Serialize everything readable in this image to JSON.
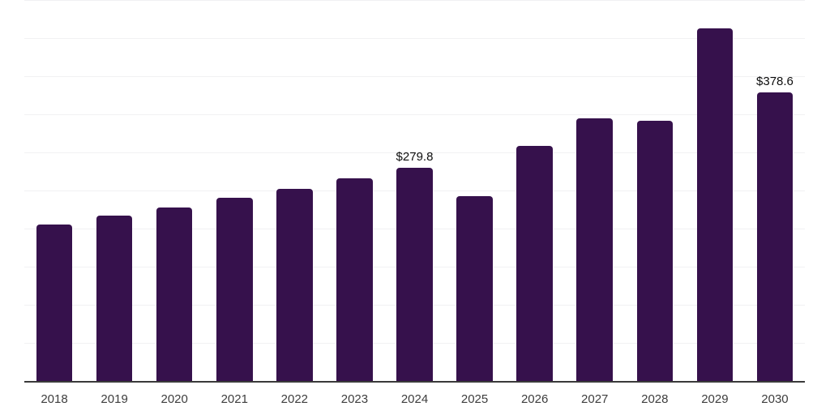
{
  "chart_data": {
    "type": "bar",
    "title": "",
    "xlabel": "",
    "ylabel": "",
    "categories": [
      "2018",
      "2019",
      "2020",
      "2021",
      "2022",
      "2023",
      "2024",
      "2025",
      "2026",
      "2027",
      "2028",
      "2029",
      "2030"
    ],
    "values": [
      205.0,
      217.0,
      228.0,
      240.5,
      252.0,
      266.5,
      279.8,
      243.0,
      309.0,
      344.5,
      342.0,
      463.0,
      378.6
    ],
    "annotations": [
      {
        "category": "2024",
        "text": "$279.8"
      },
      {
        "category": "2030",
        "text": "$378.6"
      }
    ],
    "ylim": [
      0,
      500
    ],
    "gridline_step": 50,
    "grid": true,
    "y_axis_labels_visible": false,
    "legend": false,
    "colors": {
      "bar": "#36114c",
      "grid": "#f1f1f3",
      "axis": "#3a3a3a",
      "x_tick_label": "#3d3d3d",
      "annotation": "#0d0d0d",
      "background": "#ffffff"
    }
  }
}
